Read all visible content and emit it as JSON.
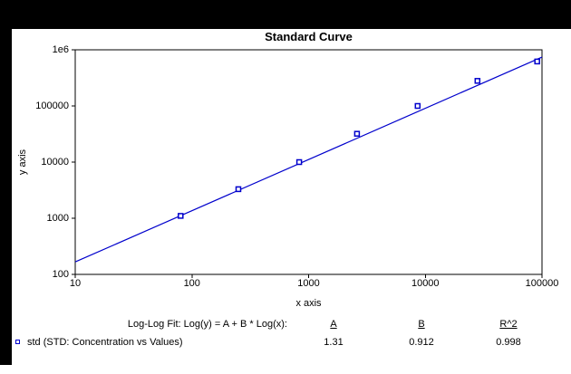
{
  "chart": {
    "title": "Standard Curve",
    "x_axis_label": "x axis",
    "y_axis_label": "y axis"
  },
  "chart_data": {
    "type": "scatter",
    "title": "Standard Curve",
    "xlabel": "x axis",
    "ylabel": "y axis",
    "x_scale": "log",
    "y_scale": "log",
    "xlim": [
      10,
      100000
    ],
    "ylim": [
      100,
      1000000
    ],
    "x_tick_labels": [
      "10",
      "100",
      "1000",
      "10000",
      "100000"
    ],
    "y_tick_labels": [
      "100",
      "1000",
      "10000",
      "100000",
      "1e6"
    ],
    "grid": false,
    "legend_position": "bottom-left",
    "series": [
      {
        "name": "std",
        "marker": "open-square",
        "color": "#0000cc",
        "x": [
          80,
          250,
          830,
          2600,
          8600,
          28000,
          91000
        ],
        "y": [
          1100,
          3300,
          10000,
          32000,
          100000,
          280000,
          620000
        ]
      }
    ],
    "fit_line": {
      "model": "Log(y) = A + B * Log(x)",
      "A": 1.31,
      "B": 0.912,
      "R2": 0.998,
      "color": "#0000cc"
    }
  },
  "footer": {
    "fit_label": "Log-Log Fit: Log(y) = A + B * Log(x):",
    "columns": {
      "a": "A",
      "b": "B",
      "r2": "R^2"
    },
    "values": {
      "a": "1.31",
      "b": "0.912",
      "r2": "0.998"
    },
    "legend_label": "std (STD: Concentration vs Values)"
  },
  "colors": {
    "series": "#0000cc",
    "axis": "#000000",
    "plot_background": "#ffffff",
    "frame_background": "#000000"
  }
}
